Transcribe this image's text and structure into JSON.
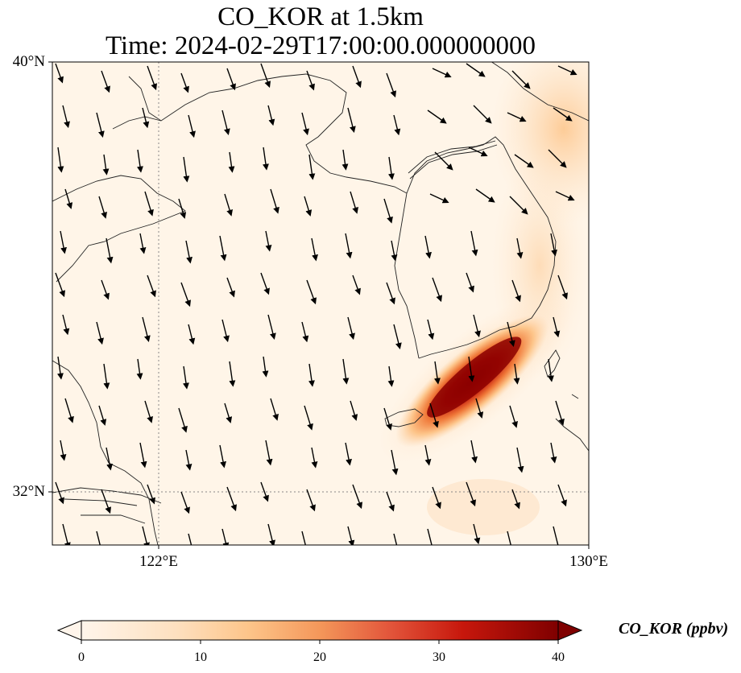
{
  "title_line1": "CO_KOR at 1.5km",
  "title_line2": "Time: 2024-02-29T17:00:00.000000000",
  "lat_labels": [
    "40°N",
    "32°N"
  ],
  "lon_labels": [
    "122°E",
    "130°E"
  ],
  "colorbar": {
    "label": "CO_KOR (ppbv)",
    "ticks": [
      "0",
      "10",
      "20",
      "30",
      "40"
    ],
    "colors": [
      "#fff5eb",
      "#fdd9b4",
      "#fda762",
      "#e05206",
      "#a63603",
      "#7f0000"
    ]
  },
  "map": {
    "extent": {
      "lon_min": 120,
      "lon_max": 130,
      "lat_min": 31,
      "lat_max": 40
    },
    "plume_color": "#b30000",
    "background_color": "#fff5e8"
  }
}
